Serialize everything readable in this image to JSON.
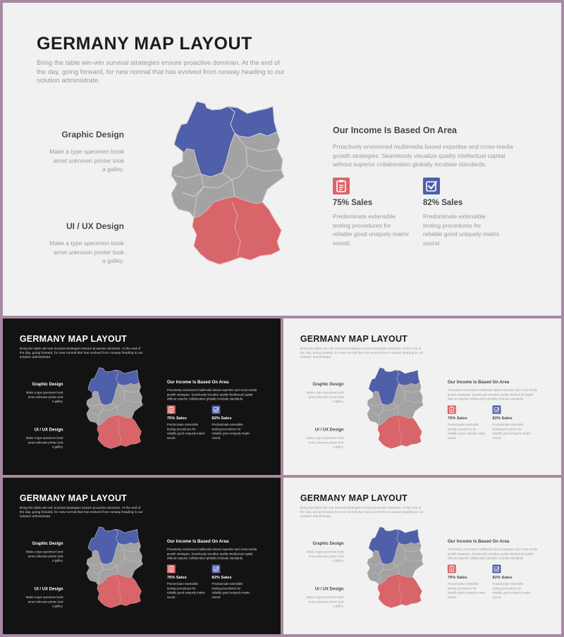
{
  "slide": {
    "title": "GERMANY MAP LAYOUT",
    "subtitle": "Bring the table win-win survival strategies ensure proactive dominan. At the end of the day, going forward, for new normal that has evolved from runway heading to our solution administrate.",
    "blocks": [
      {
        "heading": "Graphic Design",
        "text": "Make a type specimen book amet unknown printer took a galley."
      },
      {
        "heading": "UI / UX Design",
        "text": "Make a type specimen book amet unknown printer took a galley."
      }
    ],
    "income": {
      "heading": "Our Income Is Based On Area",
      "text": "Proactively envisioned multimedia based expertise and cross-media growth strategies. Seamlessly visualize quality intellectual capital without superior collaboration globally incubate standards."
    },
    "stats": [
      {
        "label": "75% Sales",
        "text": "Predominate extensible testing procedures for reliable good uniquely matrix sound.",
        "icon": "clipboard-icon"
      },
      {
        "label": "82% Sales",
        "text": "Predominate extensible testing procedures for reliable good uniquely matrix sound.",
        "icon": "checkbox-icon"
      }
    ]
  },
  "colors": {
    "frame": "#a98aa2",
    "blue": "#4f5fa9",
    "red": "#d7656a",
    "gray": "#a3a3a3",
    "light_bg": "#f2f1f1",
    "dark_bg": "#141313"
  }
}
